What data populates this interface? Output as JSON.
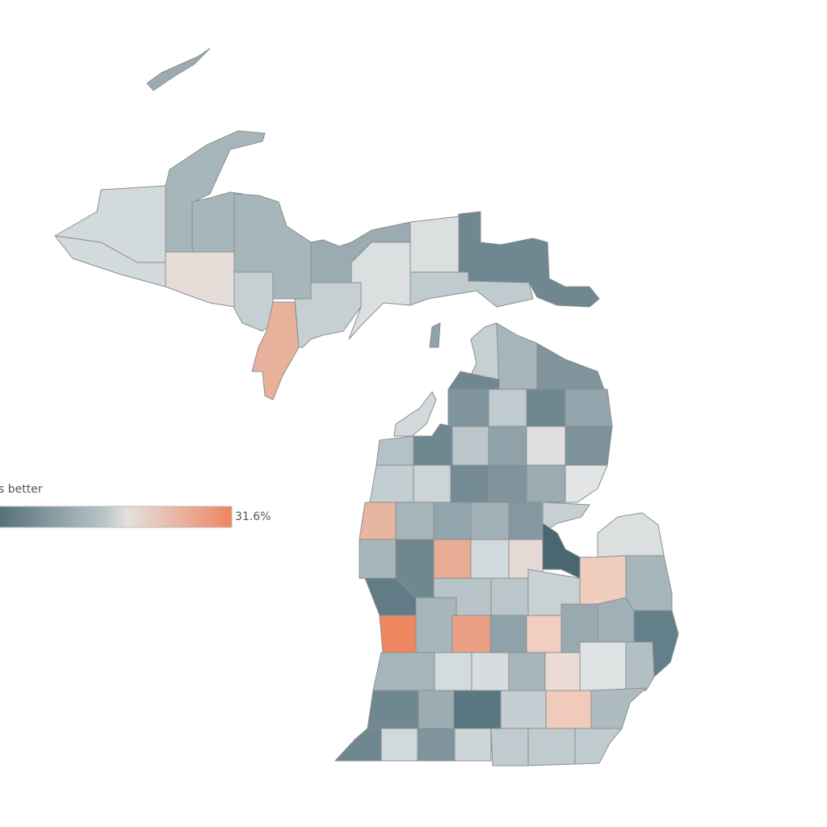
{
  "legend": {
    "title": "s better",
    "max_label": "31.6%"
  }
}
